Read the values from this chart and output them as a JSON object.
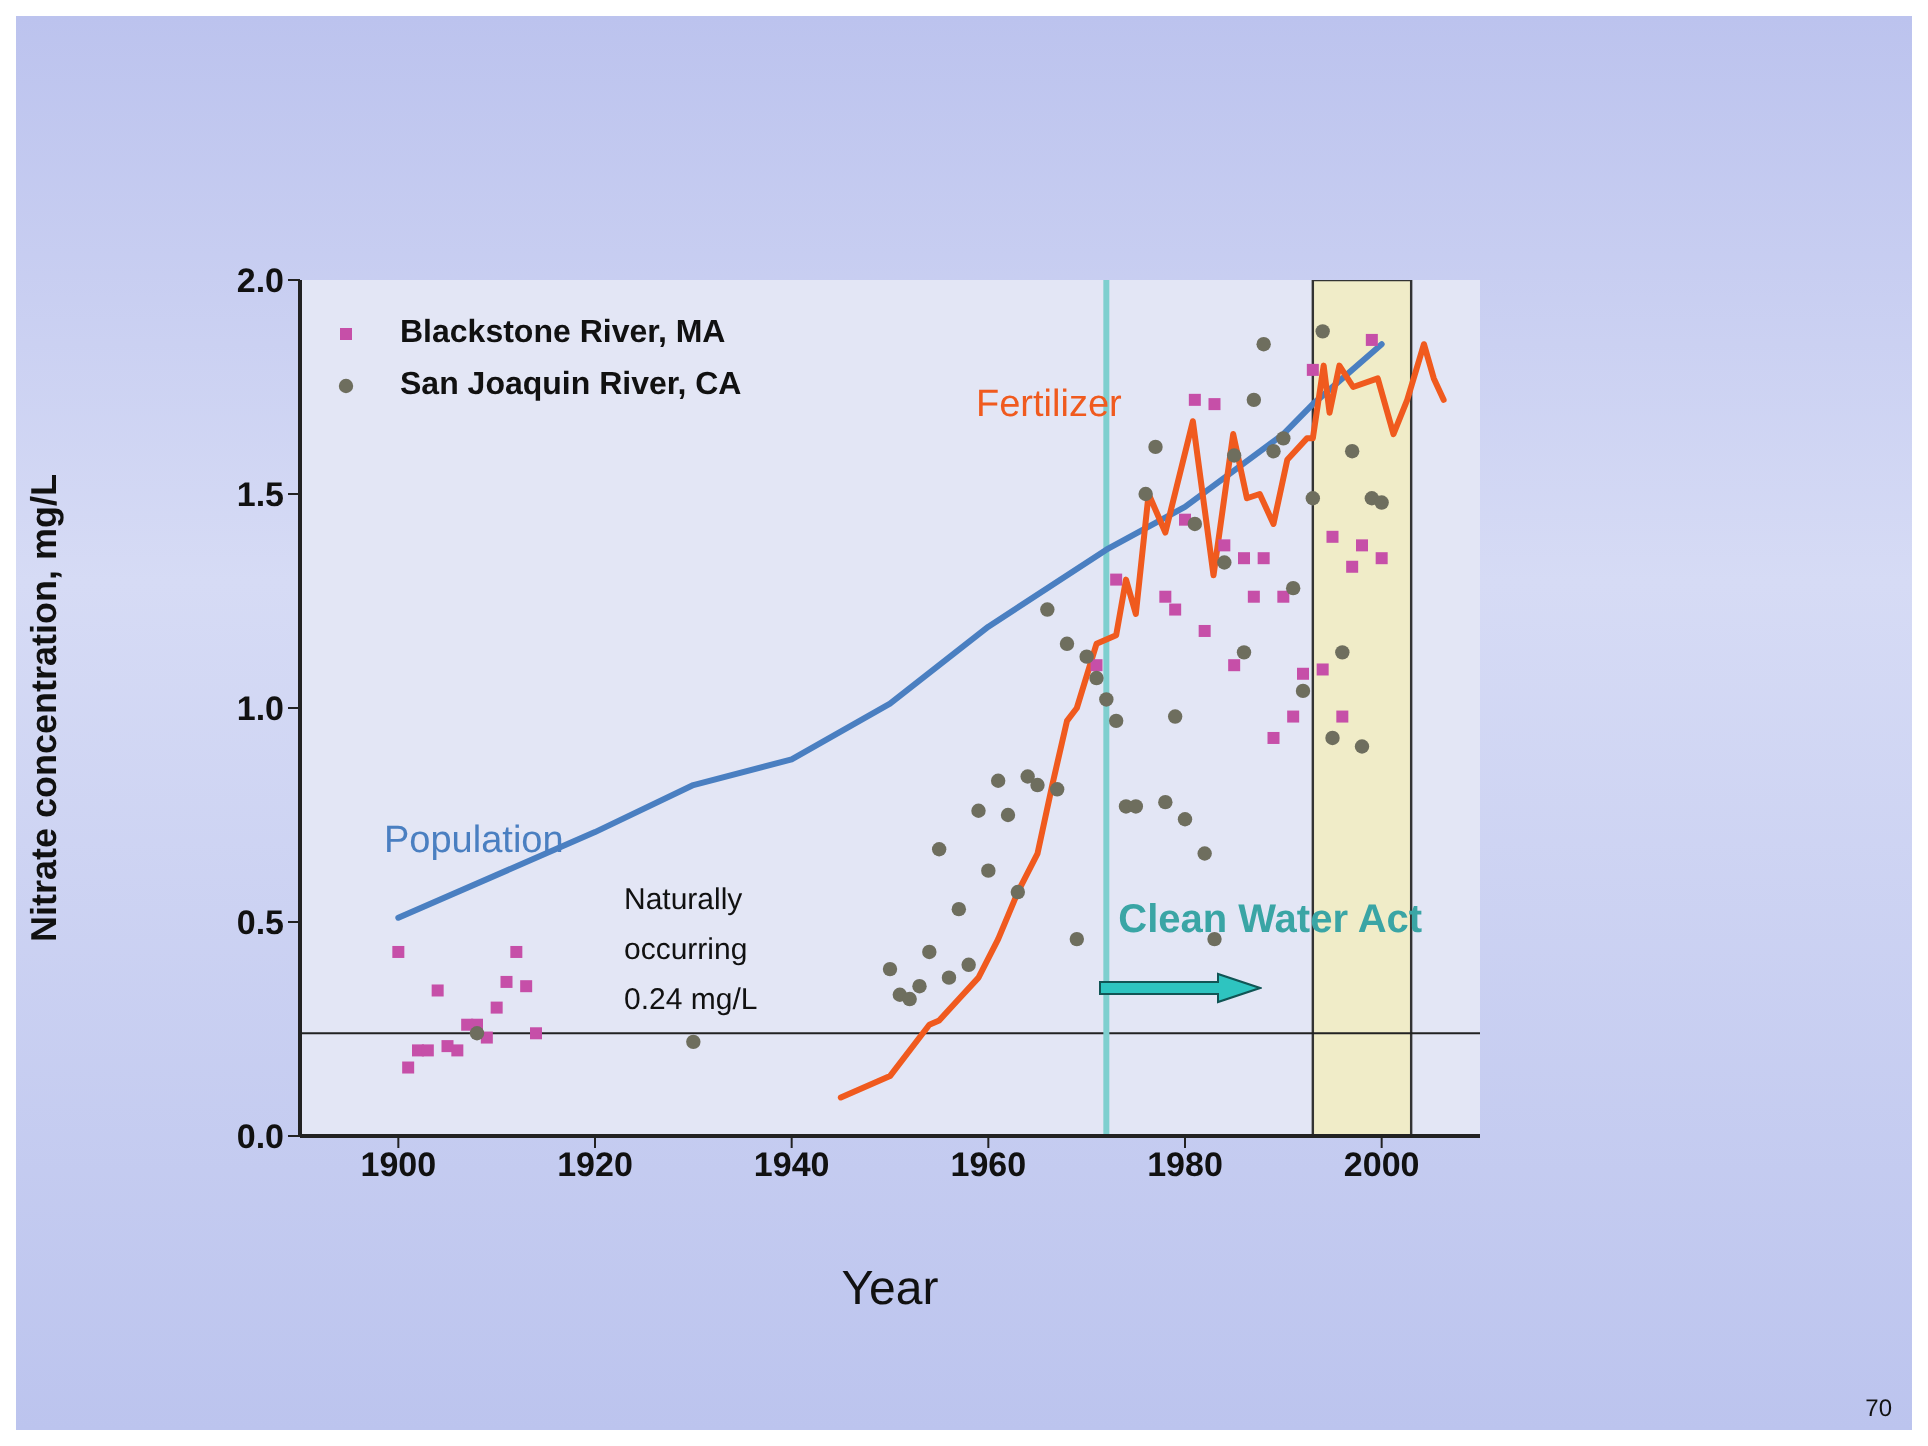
{
  "chart_data": {
    "type": "scatter",
    "xlabel": "Year",
    "ylabel": "Nitrate concentration, mg/L",
    "xlim": [
      1890,
      2010
    ],
    "xticks": [
      1900,
      1920,
      1940,
      1960,
      1980,
      2000
    ],
    "ylim": [
      0,
      2
    ],
    "yticks": [
      {
        "value": 0,
        "label": "0.0"
      },
      {
        "value": 0.5,
        "label": "0.5"
      },
      {
        "value": 1,
        "label": "1.0"
      },
      {
        "value": 1.5,
        "label": "1.5"
      },
      {
        "value": 2,
        "label": "2.0"
      }
    ],
    "legend": "top left",
    "series": [
      {
        "name": "Blackstone River, MA",
        "marker": "square",
        "color": "#c64fa8",
        "x": [
          1900,
          1901,
          1902,
          1903,
          1904,
          1905,
          1906,
          1907,
          1908,
          1909,
          1910,
          1911,
          1912,
          1913,
          1914,
          1971,
          1973,
          1978,
          1979,
          1980,
          1981,
          1982,
          1983,
          1984,
          1985,
          1986,
          1987,
          1988,
          1989,
          1990,
          1991,
          1992,
          1993,
          1994,
          1995,
          1996,
          1997,
          1998,
          1999,
          2000
        ],
        "values": [
          0.43,
          0.16,
          0.2,
          0.2,
          0.34,
          0.21,
          0.2,
          0.26,
          0.26,
          0.23,
          0.3,
          0.36,
          0.43,
          0.35,
          0.24,
          1.1,
          1.3,
          1.26,
          1.23,
          1.44,
          1.72,
          1.18,
          1.71,
          1.38,
          1.1,
          1.35,
          1.26,
          1.35,
          0.93,
          1.26,
          0.98,
          1.08,
          1.79,
          1.09,
          1.4,
          0.98,
          1.33,
          1.38,
          1.86,
          1.35
        ]
      },
      {
        "name": "San Joaquin River, CA",
        "marker": "circle",
        "color": "#6e6e5e",
        "x": [
          1908,
          1930,
          1950,
          1951,
          1952,
          1953,
          1954,
          1955,
          1956,
          1957,
          1958,
          1959,
          1960,
          1961,
          1962,
          1963,
          1964,
          1965,
          1966,
          1967,
          1968,
          1969,
          1970,
          1971,
          1972,
          1973,
          1974,
          1975,
          1976,
          1977,
          1978,
          1979,
          1980,
          1981,
          1982,
          1983,
          1984,
          1985,
          1986,
          1987,
          1988,
          1989,
          1990,
          1991,
          1992,
          1993,
          1994,
          1995,
          1996,
          1997,
          1998,
          1999,
          2000
        ],
        "values": [
          0.24,
          0.22,
          0.39,
          0.33,
          0.32,
          0.35,
          0.43,
          0.67,
          0.37,
          0.53,
          0.4,
          0.76,
          0.62,
          0.83,
          0.75,
          0.57,
          0.84,
          0.82,
          1.23,
          0.81,
          1.15,
          0.46,
          1.12,
          1.07,
          1.02,
          0.97,
          0.77,
          0.77,
          1.5,
          1.61,
          0.78,
          0.98,
          0.74,
          1.43,
          0.66,
          0.46,
          1.34,
          1.59,
          1.13,
          1.72,
          1.85,
          1.6,
          1.63,
          1.28,
          1.04,
          1.49,
          1.88,
          0.93,
          1.13,
          1.6,
          0.91,
          1.49,
          1.48
        ]
      },
      {
        "name": "Population",
        "type": "line",
        "marker": "none",
        "color": "#4a7fc1",
        "x": [
          1900,
          1920,
          1930,
          1940,
          1950,
          1960,
          1972,
          1980,
          1990,
          1993,
          2000
        ],
        "values": [
          0.51,
          0.71,
          0.82,
          0.88,
          1.01,
          1.19,
          1.37,
          1.47,
          1.64,
          1.71,
          1.85
        ]
      },
      {
        "name": "Fertilizer",
        "type": "line",
        "marker": "none",
        "color": "#f05a1e",
        "x": [
          1945,
          1950,
          1954,
          1955,
          1957,
          1959,
          1961,
          1963,
          1965,
          1966.5,
          1968,
          1969,
          1971,
          1973,
          1974,
          1975,
          1976.3,
          1978,
          1980.8,
          1982.9,
          1984.9,
          1986.3,
          1987.6,
          1989,
          1990.4,
          1992.4,
          1993,
          1994.1,
          1994.7,
          1995.7,
          1997.1,
          1999.6,
          2001.2,
          2002.6,
          2004.3,
          2005.3,
          2006.3
        ],
        "values": [
          0.09,
          0.14,
          0.26,
          0.27,
          0.32,
          0.37,
          0.46,
          0.57,
          0.66,
          0.82,
          0.97,
          1.0,
          1.15,
          1.17,
          1.3,
          1.22,
          1.5,
          1.41,
          1.67,
          1.31,
          1.64,
          1.49,
          1.5,
          1.43,
          1.58,
          1.63,
          1.63,
          1.8,
          1.69,
          1.8,
          1.75,
          1.77,
          1.64,
          1.72,
          1.85,
          1.77,
          1.72
        ]
      }
    ],
    "ref_lines": [
      {
        "axis": "y",
        "value": 0.24,
        "label": "Naturally occurring 0.24 mg/L",
        "color": "#222222"
      },
      {
        "axis": "x",
        "value": 1972,
        "label": "Clean Water Act",
        "color": "#7ecfcf"
      }
    ],
    "bands": [
      {
        "axis": "x",
        "from": 1993,
        "to": 2003,
        "color": "#f0ecc8"
      }
    ],
    "annotations": [
      "70"
    ]
  }
}
